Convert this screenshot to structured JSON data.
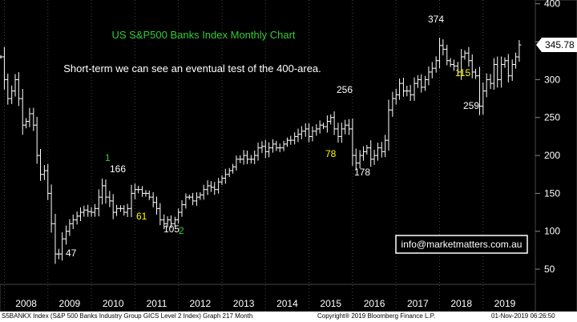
{
  "chart_data": {
    "type": "ohlc",
    "title": "US S&P500 Banks Index Monthly Chart",
    "subtitle": "Short-term we can see an eventual test of the 400-area.",
    "colors": {
      "background": "#000000",
      "bars": "#ffffff",
      "title": "#33cc33",
      "annotation_yellow": "#ffff00",
      "annotation_green": "#33cc33",
      "axis_box": "#333333",
      "last_price_box": "#ffffff"
    },
    "y_axis": {
      "ticks": [
        50,
        100,
        150,
        200,
        250,
        300,
        350,
        400
      ],
      "range": [
        30,
        405
      ],
      "position": "right"
    },
    "x_axis": {
      "labels": [
        "2008",
        "2009",
        "2010",
        "2011",
        "2012",
        "2013",
        "2014",
        "2015",
        "2016",
        "2017",
        "2018",
        "2019"
      ],
      "range": [
        2007.9,
        2020.2
      ]
    },
    "last_price": "345.78",
    "closes": [
      {
        "x": 2007.92,
        "y": 330
      },
      {
        "x": 2008.0,
        "y": 300
      },
      {
        "x": 2008.08,
        "y": 275
      },
      {
        "x": 2008.17,
        "y": 285
      },
      {
        "x": 2008.25,
        "y": 300
      },
      {
        "x": 2008.33,
        "y": 275
      },
      {
        "x": 2008.42,
        "y": 240
      },
      {
        "x": 2008.5,
        "y": 245
      },
      {
        "x": 2008.58,
        "y": 255
      },
      {
        "x": 2008.67,
        "y": 240
      },
      {
        "x": 2008.75,
        "y": 200
      },
      {
        "x": 2008.83,
        "y": 175
      },
      {
        "x": 2008.92,
        "y": 180
      },
      {
        "x": 2009.0,
        "y": 150
      },
      {
        "x": 2009.08,
        "y": 110
      },
      {
        "x": 2009.17,
        "y": 70
      },
      {
        "x": 2009.25,
        "y": 70
      },
      {
        "x": 2009.33,
        "y": 90
      },
      {
        "x": 2009.42,
        "y": 100
      },
      {
        "x": 2009.5,
        "y": 110
      },
      {
        "x": 2009.58,
        "y": 115
      },
      {
        "x": 2009.67,
        "y": 120
      },
      {
        "x": 2009.75,
        "y": 125
      },
      {
        "x": 2009.83,
        "y": 128
      },
      {
        "x": 2009.92,
        "y": 126
      },
      {
        "x": 2010.0,
        "y": 125
      },
      {
        "x": 2010.08,
        "y": 130
      },
      {
        "x": 2010.17,
        "y": 145
      },
      {
        "x": 2010.25,
        "y": 160
      },
      {
        "x": 2010.33,
        "y": 145
      },
      {
        "x": 2010.42,
        "y": 140
      },
      {
        "x": 2010.5,
        "y": 125
      },
      {
        "x": 2010.58,
        "y": 130
      },
      {
        "x": 2010.67,
        "y": 130
      },
      {
        "x": 2010.75,
        "y": 125
      },
      {
        "x": 2010.83,
        "y": 130
      },
      {
        "x": 2010.92,
        "y": 150
      },
      {
        "x": 2011.0,
        "y": 155
      },
      {
        "x": 2011.08,
        "y": 155
      },
      {
        "x": 2011.17,
        "y": 150
      },
      {
        "x": 2011.25,
        "y": 150
      },
      {
        "x": 2011.33,
        "y": 145
      },
      {
        "x": 2011.42,
        "y": 138
      },
      {
        "x": 2011.5,
        "y": 130
      },
      {
        "x": 2011.58,
        "y": 115
      },
      {
        "x": 2011.67,
        "y": 110
      },
      {
        "x": 2011.75,
        "y": 115
      },
      {
        "x": 2011.83,
        "y": 110
      },
      {
        "x": 2011.92,
        "y": 115
      },
      {
        "x": 2012.0,
        "y": 125
      },
      {
        "x": 2012.08,
        "y": 135
      },
      {
        "x": 2012.17,
        "y": 145
      },
      {
        "x": 2012.25,
        "y": 145
      },
      {
        "x": 2012.33,
        "y": 140
      },
      {
        "x": 2012.42,
        "y": 145
      },
      {
        "x": 2012.5,
        "y": 148
      },
      {
        "x": 2012.58,
        "y": 155
      },
      {
        "x": 2012.67,
        "y": 160
      },
      {
        "x": 2012.75,
        "y": 158
      },
      {
        "x": 2012.83,
        "y": 155
      },
      {
        "x": 2012.92,
        "y": 165
      },
      {
        "x": 2013.0,
        "y": 170
      },
      {
        "x": 2013.08,
        "y": 175
      },
      {
        "x": 2013.17,
        "y": 180
      },
      {
        "x": 2013.25,
        "y": 185
      },
      {
        "x": 2013.33,
        "y": 195
      },
      {
        "x": 2013.42,
        "y": 195
      },
      {
        "x": 2013.5,
        "y": 200
      },
      {
        "x": 2013.58,
        "y": 195
      },
      {
        "x": 2013.67,
        "y": 195
      },
      {
        "x": 2013.75,
        "y": 200
      },
      {
        "x": 2013.83,
        "y": 210
      },
      {
        "x": 2013.92,
        "y": 212
      },
      {
        "x": 2014.0,
        "y": 205
      },
      {
        "x": 2014.08,
        "y": 210
      },
      {
        "x": 2014.17,
        "y": 215
      },
      {
        "x": 2014.25,
        "y": 210
      },
      {
        "x": 2014.33,
        "y": 210
      },
      {
        "x": 2014.42,
        "y": 215
      },
      {
        "x": 2014.5,
        "y": 220
      },
      {
        "x": 2014.58,
        "y": 220
      },
      {
        "x": 2014.67,
        "y": 225
      },
      {
        "x": 2014.75,
        "y": 228
      },
      {
        "x": 2014.83,
        "y": 232
      },
      {
        "x": 2014.92,
        "y": 235
      },
      {
        "x": 2015.0,
        "y": 225
      },
      {
        "x": 2015.08,
        "y": 232
      },
      {
        "x": 2015.17,
        "y": 235
      },
      {
        "x": 2015.25,
        "y": 240
      },
      {
        "x": 2015.33,
        "y": 238
      },
      {
        "x": 2015.42,
        "y": 245
      },
      {
        "x": 2015.5,
        "y": 250
      },
      {
        "x": 2015.58,
        "y": 235
      },
      {
        "x": 2015.67,
        "y": 225
      },
      {
        "x": 2015.75,
        "y": 235
      },
      {
        "x": 2015.83,
        "y": 240
      },
      {
        "x": 2015.92,
        "y": 235
      },
      {
        "x": 2016.0,
        "y": 200
      },
      {
        "x": 2016.08,
        "y": 190
      },
      {
        "x": 2016.17,
        "y": 200
      },
      {
        "x": 2016.25,
        "y": 205
      },
      {
        "x": 2016.33,
        "y": 210
      },
      {
        "x": 2016.42,
        "y": 195
      },
      {
        "x": 2016.5,
        "y": 200
      },
      {
        "x": 2016.58,
        "y": 210
      },
      {
        "x": 2016.67,
        "y": 205
      },
      {
        "x": 2016.75,
        "y": 220
      },
      {
        "x": 2016.83,
        "y": 260
      },
      {
        "x": 2016.92,
        "y": 275
      },
      {
        "x": 2017.0,
        "y": 280
      },
      {
        "x": 2017.08,
        "y": 295
      },
      {
        "x": 2017.17,
        "y": 285
      },
      {
        "x": 2017.25,
        "y": 285
      },
      {
        "x": 2017.33,
        "y": 280
      },
      {
        "x": 2017.42,
        "y": 295
      },
      {
        "x": 2017.5,
        "y": 300
      },
      {
        "x": 2017.58,
        "y": 290
      },
      {
        "x": 2017.67,
        "y": 300
      },
      {
        "x": 2017.75,
        "y": 310
      },
      {
        "x": 2017.83,
        "y": 315
      },
      {
        "x": 2017.92,
        "y": 325
      },
      {
        "x": 2018.0,
        "y": 345
      },
      {
        "x": 2018.08,
        "y": 340
      },
      {
        "x": 2018.17,
        "y": 325
      },
      {
        "x": 2018.25,
        "y": 320
      },
      {
        "x": 2018.33,
        "y": 318
      },
      {
        "x": 2018.42,
        "y": 310
      },
      {
        "x": 2018.5,
        "y": 330
      },
      {
        "x": 2018.58,
        "y": 335
      },
      {
        "x": 2018.67,
        "y": 325
      },
      {
        "x": 2018.75,
        "y": 310
      },
      {
        "x": 2018.83,
        "y": 305
      },
      {
        "x": 2018.92,
        "y": 265
      },
      {
        "x": 2019.0,
        "y": 285
      },
      {
        "x": 2019.08,
        "y": 300
      },
      {
        "x": 2019.17,
        "y": 295
      },
      {
        "x": 2019.25,
        "y": 320
      },
      {
        "x": 2019.33,
        "y": 300
      },
      {
        "x": 2019.42,
        "y": 320
      },
      {
        "x": 2019.5,
        "y": 325
      },
      {
        "x": 2019.58,
        "y": 305
      },
      {
        "x": 2019.67,
        "y": 320
      },
      {
        "x": 2019.75,
        "y": 330
      },
      {
        "x": 2019.83,
        "y": 345.78
      }
    ],
    "annotations": [
      {
        "text": "374",
        "color": "#ffffff"
      },
      {
        "text": "115",
        "color": "#ffff00"
      },
      {
        "text": "259",
        "color": "#ffffff"
      },
      {
        "text": "256",
        "color": "#ffffff"
      },
      {
        "text": "78",
        "color": "#ffff00"
      },
      {
        "text": "178",
        "color": "#ffffff"
      },
      {
        "text": "1",
        "color": "#33cc33"
      },
      {
        "text": "166",
        "color": "#ffffff"
      },
      {
        "text": "61",
        "color": "#ffff00"
      },
      {
        "text": "105",
        "color": "#ffffff"
      },
      {
        "text": "2",
        "color": "#33cc33"
      },
      {
        "text": "47",
        "color": "#ffffff"
      }
    ],
    "info_box": "info@marketmatters.com.au"
  },
  "footer": {
    "left": "S5BANKX Index (S&P 500 Banks Industry Group GICS Level 2 Index) Graph 217  Month",
    "mid": "Copyright® 2019 Bloomberg Finance L.P.",
    "right": "01-Nov-2019 06:26:50"
  }
}
